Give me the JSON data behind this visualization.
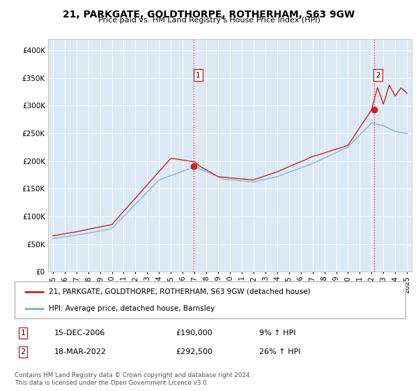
{
  "title": "21, PARKGATE, GOLDTHORPE, ROTHERHAM, S63 9GW",
  "subtitle": "Price paid vs. HM Land Registry's House Price Index (HPI)",
  "background_color": "#ffffff",
  "plot_bg_color": "#dce9f5",
  "red_line_color": "#cc2222",
  "blue_line_color": "#7aaed6",
  "annotation1_date": 2006.96,
  "annotation1_value": 190000,
  "annotation1_label": "1",
  "annotation2_date": 2022.21,
  "annotation2_value": 292500,
  "annotation2_label": "2",
  "legend_label_red": "21, PARKGATE, GOLDTHORPE, ROTHERHAM, S63 9GW (detached house)",
  "legend_label_blue": "HPI: Average price, detached house, Barnsley",
  "note1_label": "1",
  "note1_date": "15-DEC-2006",
  "note1_price": "£190,000",
  "note1_hpi": "9% ↑ HPI",
  "note2_label": "2",
  "note2_date": "18-MAR-2022",
  "note2_price": "£292,500",
  "note2_hpi": "26% ↑ HPI",
  "footer": "Contains HM Land Registry data © Crown copyright and database right 2024.\nThis data is licensed under the Open Government Licence v3.0.",
  "ylim": [
    0,
    420000
  ],
  "yticks": [
    0,
    50000,
    100000,
    150000,
    200000,
    250000,
    300000,
    350000,
    400000
  ]
}
